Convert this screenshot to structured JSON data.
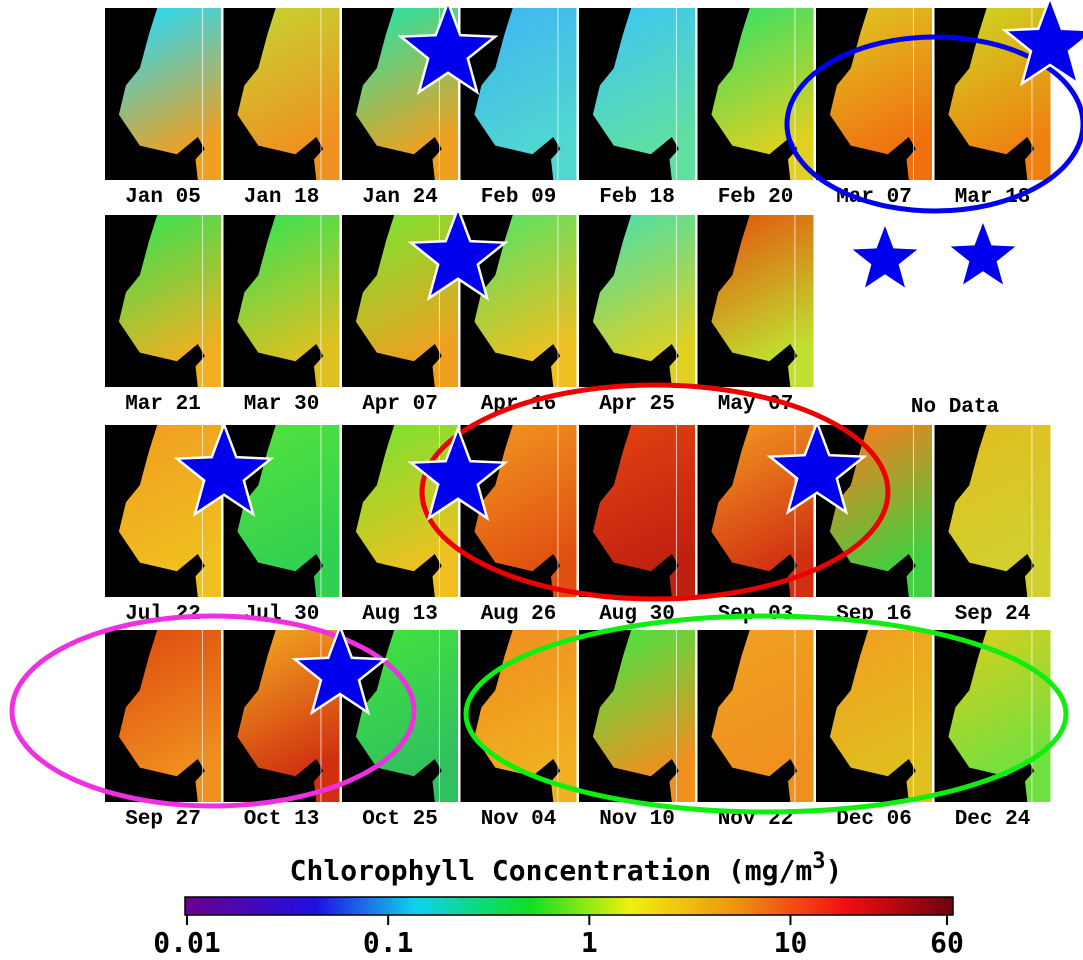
{
  "rows": [
    [
      {
        "label": "Jan 05",
        "colors": [
          "#2fd8f0",
          "#f0a020"
        ]
      },
      {
        "label": "Jan 18",
        "colors": [
          "#c8d030",
          "#f09020"
        ]
      },
      {
        "label": "Jan 24",
        "colors": [
          "#30e0a0",
          "#f0a020"
        ]
      },
      {
        "label": "Feb 09",
        "colors": [
          "#40b8f0",
          "#50d8d0"
        ]
      },
      {
        "label": "Feb 18",
        "colors": [
          "#40c8f0",
          "#60e0a0"
        ]
      },
      {
        "label": "Feb 20",
        "colors": [
          "#40e060",
          "#e0d020"
        ]
      },
      {
        "label": "Mar 07",
        "colors": [
          "#e0c020",
          "#f07010"
        ]
      },
      {
        "label": "Mar 18",
        "colors": [
          "#d0d020",
          "#f08010"
        ]
      }
    ],
    [
      {
        "label": "Mar 21",
        "colors": [
          "#40e050",
          "#f0b020"
        ]
      },
      {
        "label": "Mar 30",
        "colors": [
          "#40e050",
          "#e0c020"
        ]
      },
      {
        "label": "Apr 07",
        "colors": [
          "#80e030",
          "#f0a020"
        ]
      },
      {
        "label": "Apr 16",
        "colors": [
          "#60e060",
          "#f0c020"
        ]
      },
      {
        "label": "Apr 25",
        "colors": [
          "#50e0a0",
          "#e0d020"
        ]
      },
      {
        "label": "May 07",
        "colors": [
          "#e06010",
          "#c0e030"
        ]
      }
    ],
    [
      {
        "label": "Jul 22",
        "colors": [
          "#f0a020",
          "#f0c020"
        ]
      },
      {
        "label": "Jul 30",
        "colors": [
          "#50e040",
          "#30d050"
        ]
      },
      {
        "label": "Aug 13",
        "colors": [
          "#80e030",
          "#f0c020"
        ]
      },
      {
        "label": "Aug 26",
        "colors": [
          "#f09020",
          "#e05010"
        ]
      },
      {
        "label": "Aug 30",
        "colors": [
          "#e04010",
          "#c02010"
        ]
      },
      {
        "label": "Sep 03",
        "colors": [
          "#f09020",
          "#d03010"
        ]
      },
      {
        "label": "Sep 16",
        "colors": [
          "#f08020",
          "#40d040"
        ]
      },
      {
        "label": "Sep 24",
        "colors": [
          "#e0c020",
          "#d0d030"
        ]
      }
    ],
    [
      {
        "label": "Sep 27",
        "colors": [
          "#e05010",
          "#f09020"
        ]
      },
      {
        "label": "Oct 13",
        "colors": [
          "#f0a020",
          "#d03010"
        ]
      },
      {
        "label": "Oct 25",
        "colors": [
          "#40e040",
          "#30c060"
        ]
      },
      {
        "label": "Nov 04",
        "colors": [
          "#f09020",
          "#f0b020"
        ]
      },
      {
        "label": "Nov 10",
        "colors": [
          "#50e040",
          "#f09020"
        ]
      },
      {
        "label": "Nov 22",
        "colors": [
          "#f0a020",
          "#f09020"
        ]
      },
      {
        "label": "Dec 06",
        "colors": [
          "#f0a020",
          "#e0c020"
        ]
      },
      {
        "label": "Dec 24",
        "colors": [
          "#d0d020",
          "#70e040"
        ]
      }
    ]
  ],
  "no_data": "No Data",
  "colorbar": {
    "title": "Chlorophyll Concentration (mg/m",
    "superscript": "3",
    "title_end": ")",
    "scale": "log",
    "lim": [
      0.01,
      60
    ],
    "ticks": [
      0.01,
      0.1,
      1,
      10,
      60
    ]
  }
}
